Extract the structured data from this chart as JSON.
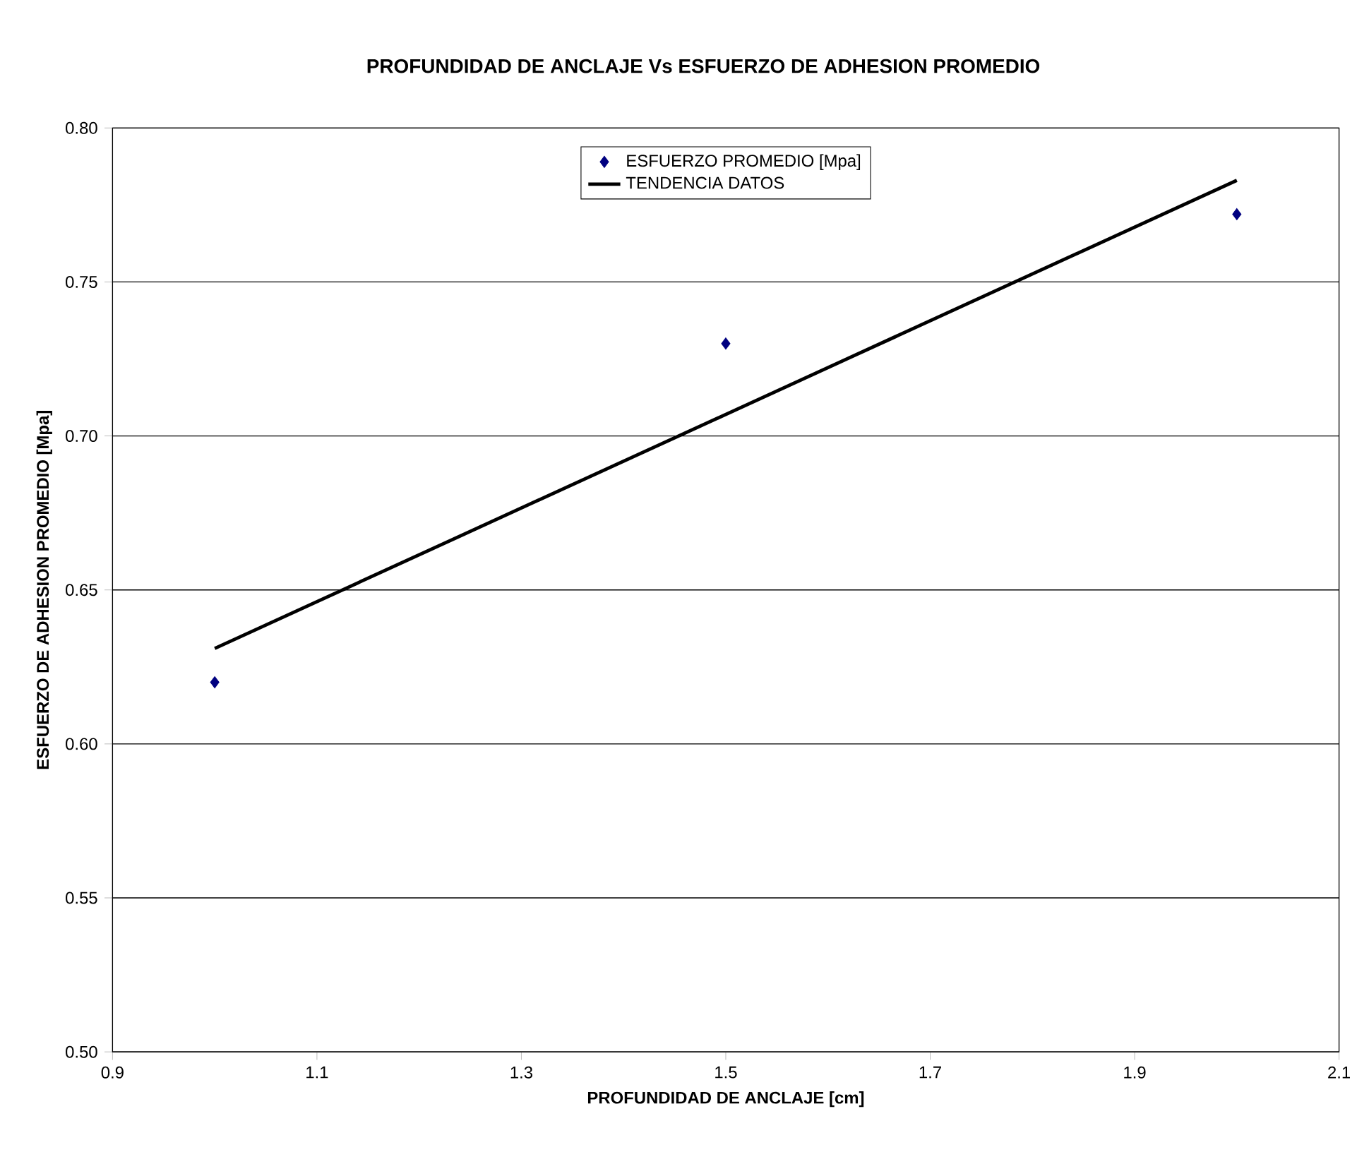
{
  "chart_data": {
    "type": "scatter",
    "title": "PROFUNDIDAD DE ANCLAJE Vs ESFUERZO DE ADHESION PROMEDIO",
    "xlabel": "PROFUNDIDAD DE ANCLAJE [cm]",
    "ylabel": "ESFUERZO DE ADHESION PROMEDIO [Mpa]",
    "series": [
      {
        "name": "ESFUERZO PROMEDIO [Mpa]",
        "color": "#000080",
        "marker": "diamond",
        "x": [
          1.0,
          1.5,
          2.0
        ],
        "values": [
          0.62,
          0.73,
          0.772
        ]
      },
      {
        "name": "TENDENCIA DATOS",
        "type": "line",
        "color": "#000000",
        "marker": "none",
        "line_style": "solid",
        "x": [
          1.0,
          2.0
        ],
        "values": [
          0.631,
          0.783
        ]
      }
    ],
    "xlim": [
      0.9,
      2.1
    ],
    "xticks": [
      0.9,
      1.1,
      1.3,
      1.5,
      1.7,
      1.9,
      2.1
    ],
    "ylim": [
      0.5,
      0.8
    ],
    "yticks": [
      {
        "value": 0.5,
        "label": "0.50"
      },
      {
        "value": 0.55,
        "label": "0.55"
      },
      {
        "value": 0.6,
        "label": "0.60"
      },
      {
        "value": 0.65,
        "label": "0.65"
      },
      {
        "value": 0.7,
        "label": "0.70"
      },
      {
        "value": 0.75,
        "label": "0.75"
      },
      {
        "value": 0.8,
        "label": "0.80"
      }
    ],
    "grid": "y",
    "legend": "top"
  }
}
